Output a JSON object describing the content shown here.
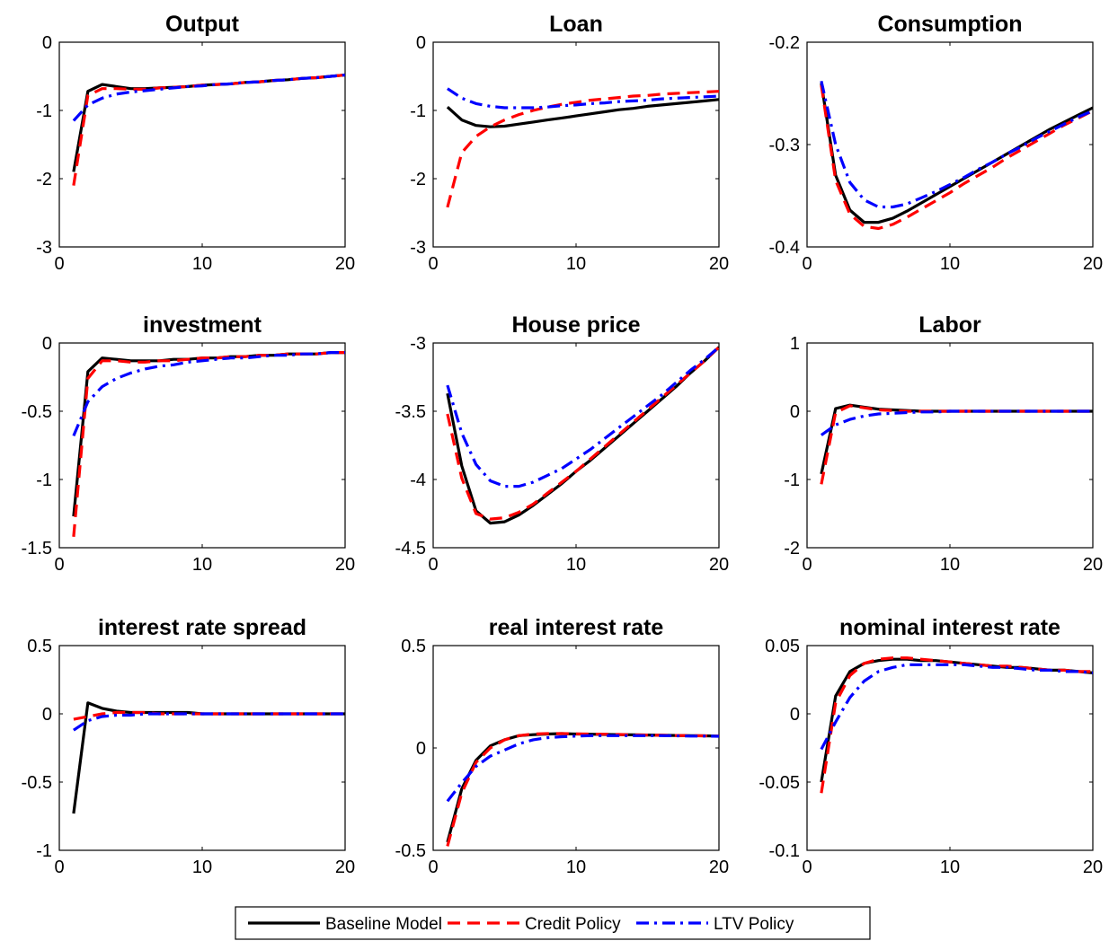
{
  "chart_data": {
    "type": "line",
    "legend": {
      "position": "bottom",
      "entries": [
        {
          "label": "Baseline Model",
          "color": "#000000",
          "style": "solid"
        },
        {
          "label": "Credit Policy",
          "color": "#ff0000",
          "style": "dashed"
        },
        {
          "label": "LTV Policy",
          "color": "#0000ff",
          "style": "dashdot"
        }
      ]
    },
    "x": [
      1,
      2,
      3,
      4,
      5,
      6,
      7,
      8,
      9,
      10,
      11,
      12,
      13,
      14,
      15,
      16,
      17,
      18,
      19,
      20
    ],
    "xlim": [
      0,
      20
    ],
    "xticks": [
      0,
      10,
      20
    ],
    "grid": false,
    "panels": [
      {
        "title": "Output",
        "ylim": [
          -3,
          0
        ],
        "yticks": [
          0,
          -1,
          -2,
          -3
        ],
        "yticklabels": [
          "0",
          "-1",
          "-2",
          "-3"
        ],
        "series": [
          {
            "values": [
              -1.9,
              -0.72,
              -0.62,
              -0.65,
              -0.68,
              -0.68,
              -0.67,
              -0.66,
              -0.65,
              -0.63,
              -0.62,
              -0.61,
              -0.59,
              -0.58,
              -0.56,
              -0.55,
              -0.53,
              -0.52,
              -0.5,
              -0.48
            ]
          },
          {
            "values": [
              -2.1,
              -0.78,
              -0.68,
              -0.68,
              -0.69,
              -0.69,
              -0.67,
              -0.66,
              -0.65,
              -0.63,
              -0.62,
              -0.61,
              -0.59,
              -0.58,
              -0.56,
              -0.55,
              -0.53,
              -0.52,
              -0.5,
              -0.48
            ]
          },
          {
            "values": [
              -1.15,
              -0.92,
              -0.82,
              -0.76,
              -0.73,
              -0.71,
              -0.69,
              -0.67,
              -0.65,
              -0.64,
              -0.62,
              -0.61,
              -0.59,
              -0.58,
              -0.56,
              -0.55,
              -0.53,
              -0.52,
              -0.5,
              -0.48
            ]
          }
        ]
      },
      {
        "title": "Loan",
        "ylim": [
          -3,
          0
        ],
        "yticks": [
          0,
          -1,
          -2,
          -3
        ],
        "yticklabels": [
          "0",
          "-1",
          "-2",
          "-3"
        ],
        "series": [
          {
            "values": [
              -0.95,
              -1.14,
              -1.22,
              -1.24,
              -1.23,
              -1.2,
              -1.17,
              -1.14,
              -1.11,
              -1.08,
              -1.05,
              -1.02,
              -0.99,
              -0.97,
              -0.94,
              -0.92,
              -0.9,
              -0.88,
              -0.86,
              -0.84
            ]
          },
          {
            "values": [
              -2.42,
              -1.62,
              -1.38,
              -1.24,
              -1.14,
              -1.06,
              -1.0,
              -0.95,
              -0.91,
              -0.88,
              -0.85,
              -0.83,
              -0.81,
              -0.79,
              -0.78,
              -0.76,
              -0.75,
              -0.74,
              -0.73,
              -0.72
            ]
          },
          {
            "values": [
              -0.68,
              -0.82,
              -0.9,
              -0.94,
              -0.96,
              -0.96,
              -0.96,
              -0.95,
              -0.93,
              -0.92,
              -0.9,
              -0.89,
              -0.87,
              -0.86,
              -0.85,
              -0.83,
              -0.82,
              -0.81,
              -0.8,
              -0.79
            ]
          }
        ]
      },
      {
        "title": "Consumption",
        "ylim": [
          -0.4,
          -0.2
        ],
        "yticks": [
          -0.2,
          -0.3,
          -0.4
        ],
        "yticklabels": [
          "-0.2",
          "-0.3",
          "-0.4"
        ],
        "series": [
          {
            "values": [
              -0.24,
              -0.33,
              -0.364,
              -0.376,
              -0.376,
              -0.372,
              -0.365,
              -0.357,
              -0.349,
              -0.341,
              -0.333,
              -0.325,
              -0.317,
              -0.309,
              -0.301,
              -0.293,
              -0.285,
              -0.278,
              -0.271,
              -0.264
            ]
          },
          {
            "values": [
              -0.242,
              -0.335,
              -0.368,
              -0.38,
              -0.382,
              -0.378,
              -0.371,
              -0.363,
              -0.355,
              -0.347,
              -0.338,
              -0.33,
              -0.322,
              -0.313,
              -0.305,
              -0.297,
              -0.289,
              -0.281,
              -0.274,
              -0.267
            ]
          },
          {
            "values": [
              -0.238,
              -0.3,
              -0.337,
              -0.354,
              -0.361,
              -0.361,
              -0.358,
              -0.352,
              -0.346,
              -0.339,
              -0.332,
              -0.324,
              -0.317,
              -0.309,
              -0.302,
              -0.294,
              -0.287,
              -0.28,
              -0.273,
              -0.267
            ]
          }
        ]
      },
      {
        "title": "investment",
        "ylim": [
          -1.5,
          0
        ],
        "yticks": [
          0,
          -0.5,
          -1,
          -1.5
        ],
        "yticklabels": [
          "0",
          "-0.5",
          "-1",
          "-1.5"
        ],
        "series": [
          {
            "values": [
              -1.27,
              -0.21,
              -0.11,
              -0.12,
              -0.13,
              -0.13,
              -0.13,
              -0.12,
              -0.12,
              -0.11,
              -0.11,
              -0.1,
              -0.1,
              -0.09,
              -0.09,
              -0.08,
              -0.08,
              -0.08,
              -0.07,
              -0.07
            ]
          },
          {
            "values": [
              -1.42,
              -0.26,
              -0.13,
              -0.13,
              -0.14,
              -0.14,
              -0.13,
              -0.13,
              -0.12,
              -0.11,
              -0.11,
              -0.1,
              -0.1,
              -0.09,
              -0.09,
              -0.08,
              -0.08,
              -0.08,
              -0.07,
              -0.07
            ]
          },
          {
            "values": [
              -0.68,
              -0.43,
              -0.32,
              -0.26,
              -0.22,
              -0.19,
              -0.17,
              -0.16,
              -0.14,
              -0.13,
              -0.12,
              -0.11,
              -0.11,
              -0.1,
              -0.09,
              -0.09,
              -0.08,
              -0.08,
              -0.07,
              -0.07
            ]
          }
        ]
      },
      {
        "title": "House price",
        "ylim": [
          -4.5,
          -3
        ],
        "yticks": [
          -3,
          -3.5,
          -4,
          -4.5
        ],
        "yticklabels": [
          "-3",
          "-3.5",
          "-4",
          "-4.5"
        ],
        "series": [
          {
            "values": [
              -3.37,
              -3.9,
              -4.23,
              -4.32,
              -4.31,
              -4.26,
              -4.19,
              -4.11,
              -4.03,
              -3.94,
              -3.86,
              -3.77,
              -3.68,
              -3.59,
              -3.5,
              -3.41,
              -3.32,
              -3.22,
              -3.13,
              -3.03
            ]
          },
          {
            "values": [
              -3.52,
              -3.99,
              -4.25,
              -4.29,
              -4.28,
              -4.24,
              -4.18,
              -4.1,
              -4.02,
              -3.94,
              -3.85,
              -3.76,
              -3.67,
              -3.58,
              -3.49,
              -3.4,
              -3.31,
              -3.22,
              -3.13,
              -3.03
            ]
          },
          {
            "values": [
              -3.31,
              -3.66,
              -3.89,
              -4.01,
              -4.05,
              -4.05,
              -4.02,
              -3.97,
              -3.92,
              -3.85,
              -3.78,
              -3.7,
              -3.62,
              -3.54,
              -3.46,
              -3.38,
              -3.29,
              -3.2,
              -3.12,
              -3.03
            ]
          }
        ]
      },
      {
        "title": "Labor",
        "ylim": [
          -2,
          1
        ],
        "yticks": [
          1,
          0,
          -1,
          -2
        ],
        "yticklabels": [
          "1",
          "0",
          "-1",
          "-2"
        ],
        "series": [
          {
            "values": [
              -0.92,
              0.04,
              0.09,
              0.06,
              0.03,
              0.02,
              0.01,
              0.0,
              0.0,
              0.0,
              0.0,
              0.0,
              0.0,
              0.0,
              0.0,
              0.0,
              0.0,
              0.0,
              0.0,
              0.0
            ]
          },
          {
            "values": [
              -1.07,
              -0.02,
              0.08,
              0.05,
              0.02,
              0.01,
              0.0,
              0.0,
              0.0,
              0.0,
              0.0,
              0.0,
              0.0,
              0.0,
              0.0,
              0.0,
              0.0,
              0.0,
              0.0,
              0.0
            ]
          },
          {
            "values": [
              -0.35,
              -0.2,
              -0.12,
              -0.07,
              -0.04,
              -0.03,
              -0.02,
              -0.01,
              -0.01,
              0.0,
              0.0,
              0.0,
              0.0,
              0.0,
              0.0,
              0.0,
              0.0,
              0.0,
              0.0,
              0.0
            ]
          }
        ]
      },
      {
        "title": "interest rate spread",
        "ylim": [
          -1,
          0.5
        ],
        "yticks": [
          0.5,
          0,
          -0.5,
          -1
        ],
        "yticklabels": [
          "0.5",
          "0",
          "-0.5",
          "-1"
        ],
        "series": [
          {
            "values": [
              -0.73,
              0.08,
              0.04,
              0.02,
              0.01,
              0.01,
              0.01,
              0.01,
              0.01,
              0.0,
              0.0,
              0.0,
              0.0,
              0.0,
              0.0,
              0.0,
              0.0,
              0.0,
              0.0,
              0.0
            ]
          },
          {
            "values": [
              -0.04,
              -0.02,
              0.0,
              0.01,
              0.01,
              0.01,
              0.0,
              0.0,
              0.0,
              0.0,
              0.0,
              0.0,
              0.0,
              0.0,
              0.0,
              0.0,
              0.0,
              0.0,
              0.0,
              0.0
            ]
          },
          {
            "values": [
              -0.12,
              -0.05,
              -0.02,
              -0.01,
              -0.01,
              0.0,
              0.0,
              0.0,
              0.0,
              0.0,
              0.0,
              0.0,
              0.0,
              0.0,
              0.0,
              0.0,
              0.0,
              0.0,
              0.0,
              0.0
            ]
          }
        ]
      },
      {
        "title": "real interest rate",
        "ylim": [
          -0.5,
          0.5
        ],
        "yticks": [
          0.5,
          0,
          -0.5
        ],
        "yticklabels": [
          "0.5",
          "0",
          "-0.5"
        ],
        "series": [
          {
            "values": [
              -0.46,
              -0.2,
              -0.06,
              0.01,
              0.04,
              0.06,
              0.065,
              0.068,
              0.07,
              0.068,
              0.067,
              0.066,
              0.065,
              0.064,
              0.063,
              0.062,
              0.061,
              0.06,
              0.059,
              0.058
            ]
          },
          {
            "values": [
              -0.48,
              -0.22,
              -0.07,
              0.0,
              0.04,
              0.06,
              0.068,
              0.07,
              0.07,
              0.069,
              0.068,
              0.067,
              0.066,
              0.064,
              0.063,
              0.062,
              0.061,
              0.06,
              0.059,
              0.058
            ]
          },
          {
            "values": [
              -0.26,
              -0.17,
              -0.09,
              -0.04,
              -0.01,
              0.02,
              0.04,
              0.05,
              0.055,
              0.058,
              0.06,
              0.06,
              0.06,
              0.06,
              0.06,
              0.06,
              0.059,
              0.058,
              0.058,
              0.057
            ]
          }
        ]
      },
      {
        "title": "nominal interest rate",
        "ylim": [
          -0.1,
          0.05
        ],
        "yticks": [
          0.05,
          0,
          -0.05,
          -0.1
        ],
        "yticklabels": [
          "0.05",
          "0",
          "-0.05",
          "-0.1"
        ],
        "series": [
          {
            "values": [
              -0.05,
              0.013,
              0.031,
              0.037,
              0.039,
              0.04,
              0.04,
              0.039,
              0.039,
              0.038,
              0.037,
              0.036,
              0.035,
              0.034,
              0.034,
              0.033,
              0.032,
              0.032,
              0.031,
              0.03
            ]
          },
          {
            "values": [
              -0.058,
              0.008,
              0.028,
              0.037,
              0.04,
              0.041,
              0.041,
              0.04,
              0.039,
              0.038,
              0.037,
              0.036,
              0.035,
              0.035,
              0.034,
              0.033,
              0.032,
              0.032,
              0.031,
              0.031
            ]
          },
          {
            "values": [
              -0.026,
              -0.006,
              0.012,
              0.024,
              0.031,
              0.034,
              0.036,
              0.036,
              0.036,
              0.036,
              0.036,
              0.035,
              0.034,
              0.034,
              0.033,
              0.032,
              0.032,
              0.031,
              0.031,
              0.03
            ]
          }
        ]
      }
    ]
  }
}
